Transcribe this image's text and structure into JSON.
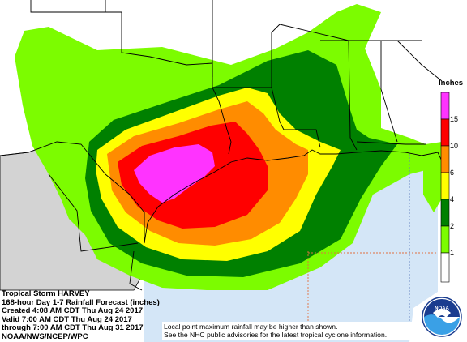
{
  "title": {
    "storm": "Tropical Storm HARVEY",
    "product": "168-hour Day 1-7 Rainfall Forecast (inches)",
    "created": "Created 4:08 AM CDT Thu Aug 24 2017",
    "valid": "Valid 7:00 AM CDT Thu Aug 24 2017",
    "through": "through 7:00 AM CDT Thu Aug 31 2017",
    "source": "NOAA/NWS/NCEP/WPC"
  },
  "disclaimer": {
    "line1": "Local point maximum rainfall may be higher than shown.",
    "line2": "See the NHC public advisories for the latest tropical cyclone information."
  },
  "legend": {
    "title": "Inches",
    "levels": [
      {
        "label": "15",
        "color": "#ff33ff"
      },
      {
        "label": "10",
        "color": "#ff0000"
      },
      {
        "label": "6",
        "color": "#ff8c00"
      },
      {
        "label": "4",
        "color": "#ffff00"
      },
      {
        "label": "2",
        "color": "#008000"
      },
      {
        "label": "1",
        "color": "#7cfc00"
      },
      {
        "label": "",
        "color": "#ffffff"
      }
    ]
  },
  "logo": {
    "text": "NOAA",
    "icon": "noaa-logo-icon"
  },
  "colors": {
    "gulf_water": "#d4e6f7",
    "mexico_land": "#d3d3d3",
    "map_background": "#ffffff",
    "boundaries": "#000000"
  }
}
